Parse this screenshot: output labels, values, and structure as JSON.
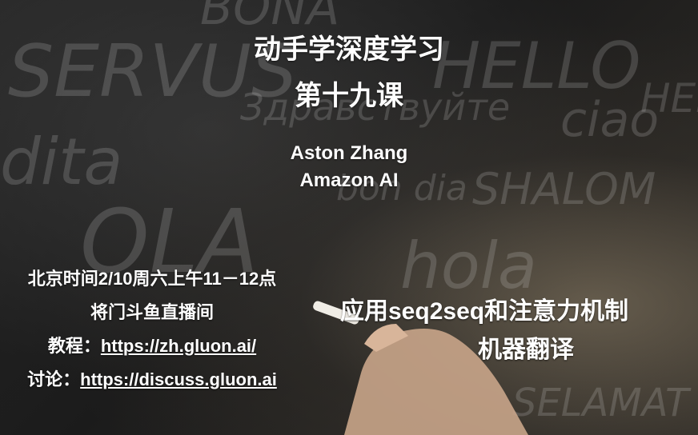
{
  "slide": {
    "title": "动手学深度学习",
    "lesson": "第十九课",
    "author_name": "Aston Zhang",
    "author_affiliation": "Amazon AI",
    "schedule": "北京时间2/10周六上午11－12点",
    "venue": "将门斗鱼直播间",
    "tutorial_label": "教程：",
    "tutorial_url": "https://zh.gluon.ai/",
    "discuss_label": "讨论：",
    "discuss_url": "https://discuss.gluon.ai",
    "topic_line1": "应用seq2seq和注意力机制",
    "topic_line2": "机器翻译"
  },
  "background": {
    "chalk_words": [
      "SERVUS",
      "BONA",
      "HELLO",
      "ciao",
      "Здравствуйте",
      "dita",
      "bon dia",
      "SHALOM",
      "OLA",
      "hola",
      "SELAMAT",
      "HEI"
    ]
  }
}
